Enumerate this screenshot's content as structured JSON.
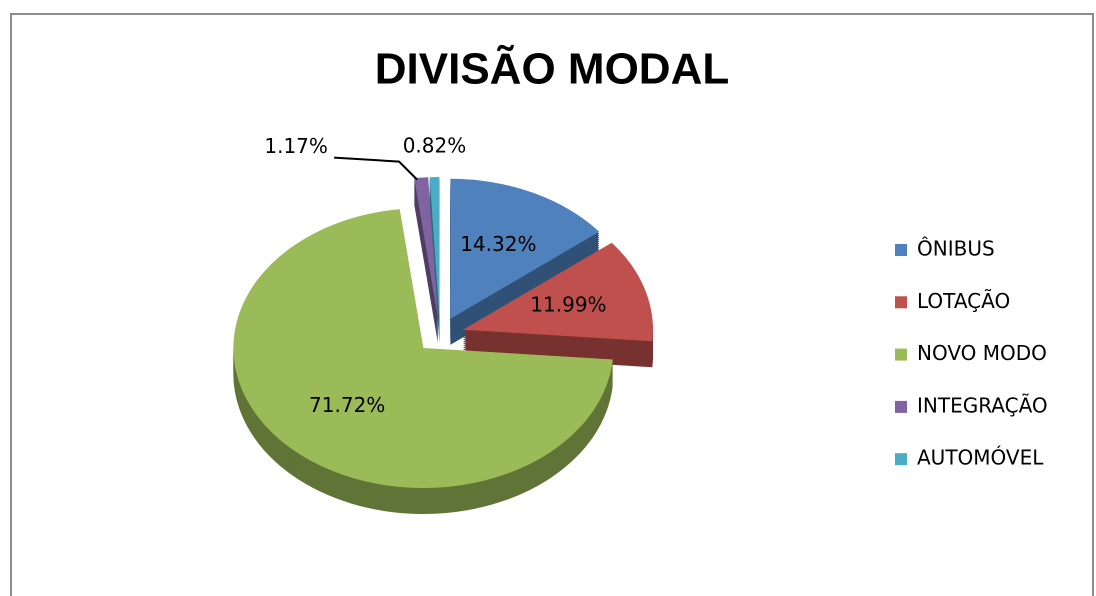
{
  "chart_data": {
    "type": "pie",
    "title": "DIVISÃO MODAL",
    "categories": [
      "ÔNIBUS",
      "LOTAÇÃO",
      "NOVO MODO",
      "INTEGRAÇÃO",
      "AUTOMÓVEL"
    ],
    "values": [
      14.32,
      11.99,
      71.72,
      1.17,
      0.82
    ],
    "value_labels": [
      "14.32%",
      "11.99%",
      "71.72%",
      "1.17%",
      "0.82%"
    ],
    "colors": [
      "#4f81bd",
      "#c0504d",
      "#9bbb59",
      "#8064a2",
      "#4bacc6"
    ],
    "legend": "right"
  }
}
